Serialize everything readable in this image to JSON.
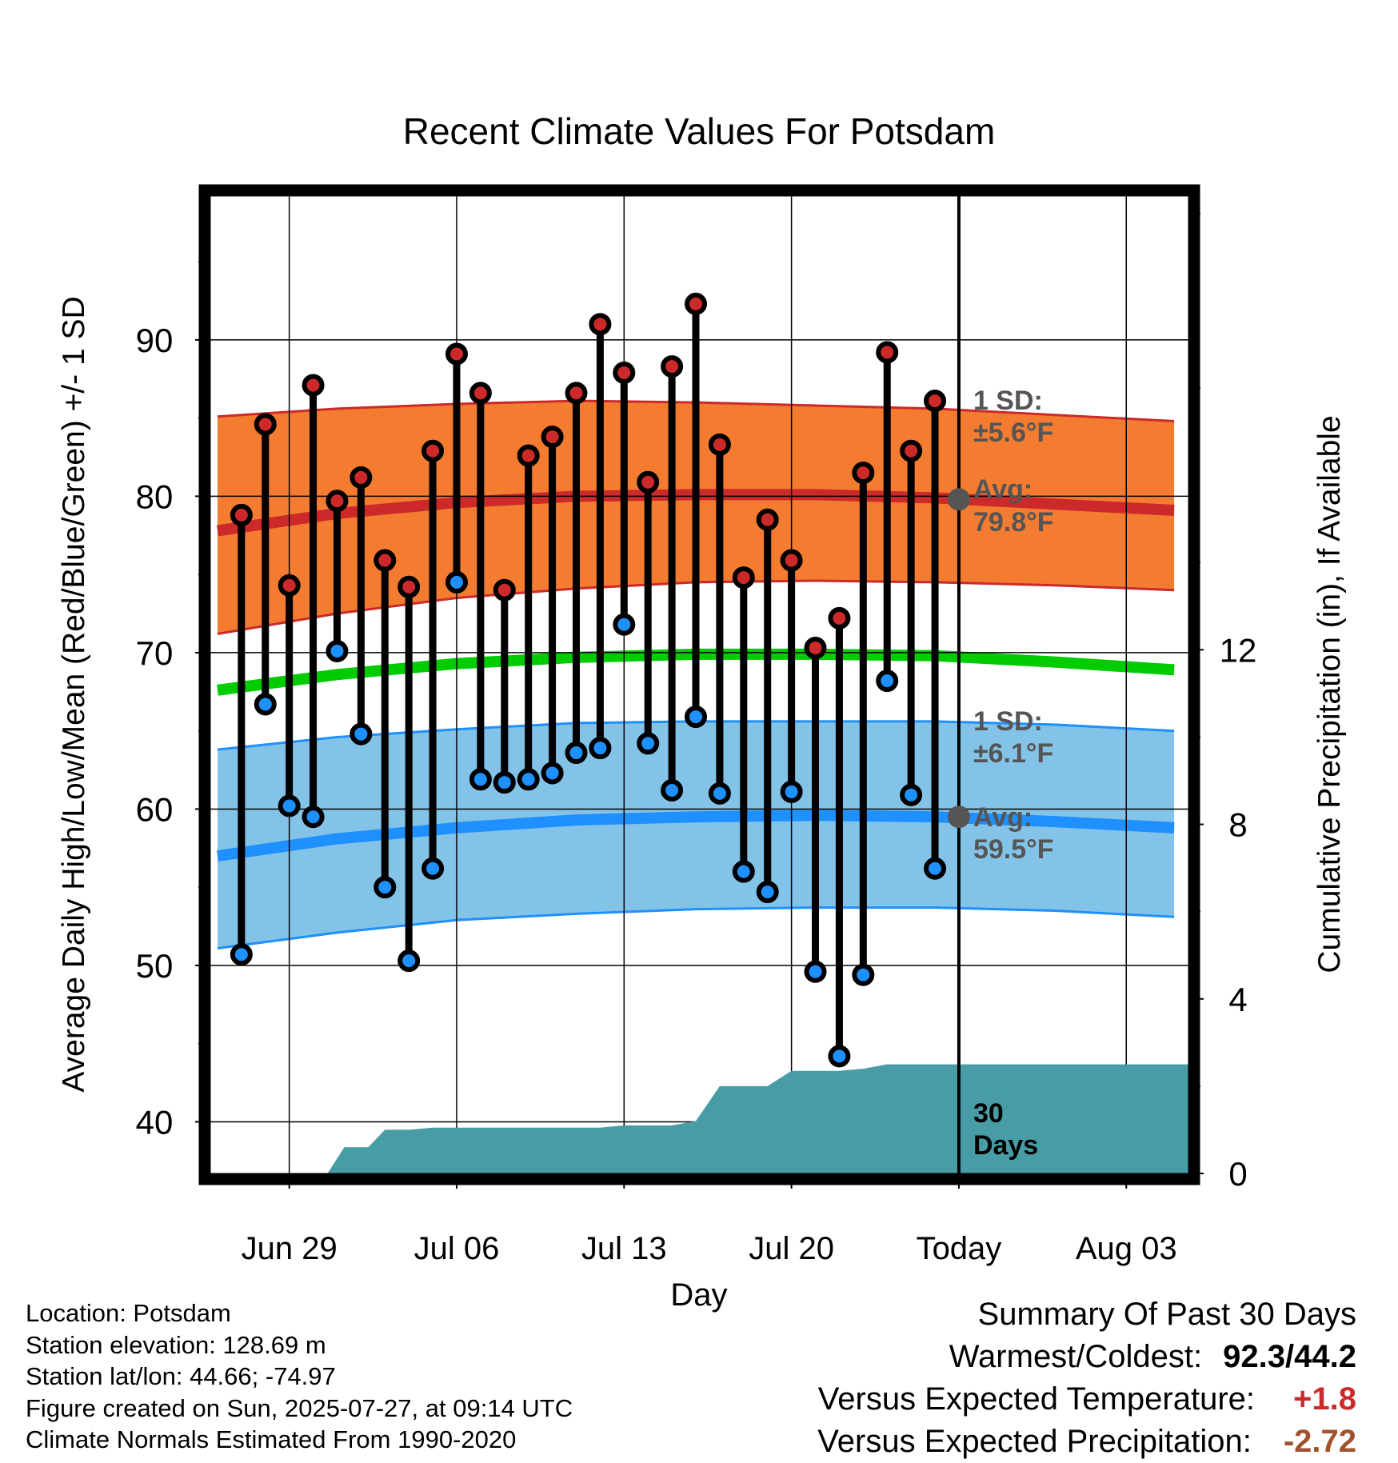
{
  "chart_data": {
    "type": "line",
    "title": "Recent Climate Values For Potsdam",
    "xlabel": "Day",
    "ylabel": "Average Daily High/Low/Mean (Red/Blue/Green) +/- 1 SD",
    "y2label": "Cumulative Precipitation (in), If Available",
    "ylim": [
      36.7,
      99.2
    ],
    "y2lim": [
      0,
      22.4
    ],
    "y_ticks": [
      40,
      50,
      60,
      70,
      80,
      90
    ],
    "y2_ticks": [
      0,
      4,
      8,
      12
    ],
    "x_ticks": [
      {
        "day": 3,
        "label": "Jun 29"
      },
      {
        "day": 10,
        "label": "Jul 06"
      },
      {
        "day": 17,
        "label": "Jul 13"
      },
      {
        "day": 24,
        "label": "Jul 20"
      },
      {
        "day": 31,
        "label": "Today"
      },
      {
        "day": 38,
        "label": "Aug 03"
      }
    ],
    "xlim": [
      -0.3,
      40.6
    ],
    "today_day": 31,
    "window_label": [
      "30",
      "Days"
    ],
    "series": [
      {
        "name": "High",
        "color": "#cc2a2a",
        "x": [
          1,
          2,
          3,
          4,
          5,
          6,
          7,
          8,
          9,
          10,
          11,
          12,
          13,
          14,
          15,
          16,
          17,
          18,
          19,
          20,
          21,
          22,
          23,
          24,
          25,
          26,
          27,
          28,
          29,
          30
        ],
        "values": [
          78.8,
          84.6,
          74.3,
          87.1,
          79.7,
          81.2,
          75.9,
          74.2,
          82.9,
          89.1,
          86.6,
          74.0,
          82.6,
          83.8,
          86.6,
          91.0,
          87.9,
          80.9,
          88.3,
          92.3,
          83.3,
          74.8,
          78.5,
          75.9,
          70.3,
          72.2,
          81.5,
          89.2,
          82.9,
          86.1
        ]
      },
      {
        "name": "Low",
        "color": "#1e90ff",
        "x": [
          1,
          2,
          3,
          4,
          5,
          6,
          7,
          8,
          9,
          10,
          11,
          12,
          13,
          14,
          15,
          16,
          17,
          18,
          19,
          20,
          21,
          22,
          23,
          24,
          25,
          26,
          27,
          28,
          29,
          30
        ],
        "values": [
          50.7,
          66.7,
          60.2,
          59.5,
          70.1,
          64.8,
          55.0,
          50.3,
          56.2,
          74.5,
          61.9,
          61.7,
          61.9,
          62.3,
          63.6,
          63.9,
          71.8,
          64.2,
          61.2,
          65.9,
          61.0,
          56.0,
          54.7,
          61.1,
          49.6,
          44.2,
          49.4,
          68.2,
          60.9,
          56.2
        ]
      }
    ],
    "normals": {
      "x": [
        0,
        5,
        10,
        15,
        20,
        25,
        30,
        35,
        40
      ],
      "high_mean": [
        77.8,
        78.9,
        79.6,
        80.0,
        80.1,
        80.1,
        79.9,
        79.5,
        79.1
      ],
      "high_upper": [
        85.1,
        85.6,
        85.9,
        86.1,
        86.0,
        85.8,
        85.6,
        85.2,
        84.8
      ],
      "high_lower": [
        71.2,
        72.5,
        73.5,
        74.1,
        74.5,
        74.6,
        74.5,
        74.3,
        74.0
      ],
      "mean": [
        67.6,
        68.6,
        69.3,
        69.7,
        69.9,
        69.9,
        69.8,
        69.4,
        68.9
      ],
      "low_mean": [
        57.0,
        58.1,
        58.8,
        59.3,
        59.5,
        59.6,
        59.5,
        59.2,
        58.8
      ],
      "low_upper": [
        63.8,
        64.6,
        65.1,
        65.5,
        65.6,
        65.6,
        65.6,
        65.4,
        65.0
      ],
      "low_lower": [
        51.1,
        52.1,
        52.9,
        53.3,
        53.6,
        53.7,
        53.7,
        53.5,
        53.1
      ],
      "high_color": "#f47c30",
      "high_line_color": "#cc2a2a",
      "low_color": "#84c3e8",
      "low_line_color": "#1e90ff",
      "mean_color": "#00cc00"
    },
    "precip": {
      "color": "#489ca5",
      "x": [
        -0.3,
        1.5,
        1.6,
        2.6,
        3.6,
        4.6,
        5.3,
        6.3,
        7.0,
        8.0,
        9.0,
        10.0,
        11.0,
        12.0,
        13.0,
        14.0,
        15.0,
        16.0,
        17.0,
        18.0,
        19.0,
        20.0,
        21.0,
        22.0,
        23.0,
        24.0,
        25.0,
        26.0,
        27.0,
        28.0,
        29.0,
        30.0,
        31.0,
        40.6
      ],
      "values": [
        0,
        0,
        0,
        0,
        0,
        0,
        0.6,
        0.6,
        1.0,
        1.0,
        1.05,
        1.05,
        1.05,
        1.05,
        1.05,
        1.05,
        1.05,
        1.05,
        1.1,
        1.1,
        1.1,
        1.2,
        2.0,
        2.0,
        2.0,
        2.35,
        2.35,
        2.35,
        2.4,
        2.5,
        2.5,
        2.5,
        2.5,
        2.5
      ]
    },
    "annotations": {
      "high_sd": [
        "1 SD:",
        "±5.6°F"
      ],
      "high_avg": [
        "Avg:",
        "79.8°F"
      ],
      "low_sd": [
        "1 SD:",
        "±6.1°F"
      ],
      "low_avg": [
        "Avg:",
        "59.5°F"
      ],
      "today_high_avg": 79.8,
      "today_low_avg": 59.5
    }
  },
  "info": {
    "location": "Location: Potsdam",
    "elevation": "Station elevation: 128.69 m",
    "latlon": "Station lat/lon: 44.66; -74.97",
    "created": "Figure created on Sun, 2025-07-27, at 09:14 UTC",
    "normals": "Climate Normals Estimated From 1990-2020"
  },
  "summary": {
    "title": "Summary Of Past 30 Days",
    "warm_cold_label": "Warmest/Coldest:",
    "warmest": "92.3",
    "slash": "/",
    "coldest": "44.2",
    "temp_label": "Versus Expected Temperature:",
    "temp_value": "+1.8",
    "precip_label": "Versus Expected Precipitation:",
    "precip_value": "-2.72",
    "temp_color": "#cc2a2a",
    "precip_color": "#a0522d"
  }
}
